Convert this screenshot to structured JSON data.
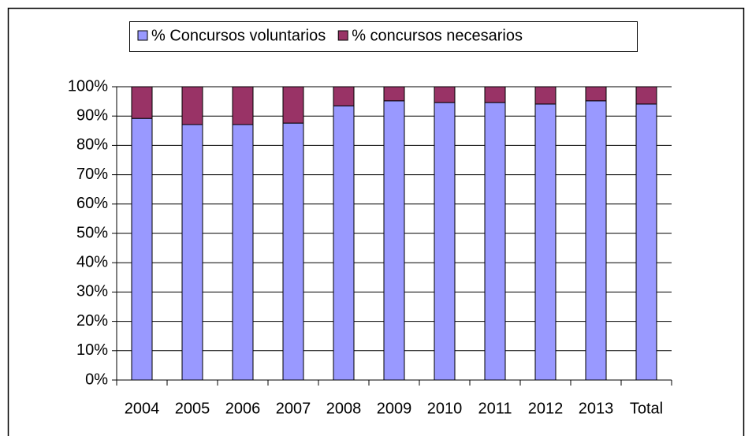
{
  "chart_data": {
    "type": "stacked_bar",
    "categories": [
      "2004",
      "2005",
      "2006",
      "2007",
      "2008",
      "2009",
      "2010",
      "2011",
      "2012",
      "2013",
      "Total"
    ],
    "series": [
      {
        "name": "% Concursos voluntarios",
        "color": "#9999ff",
        "values": [
          89.2,
          87.1,
          87.1,
          87.6,
          93.5,
          95.2,
          94.6,
          94.6,
          94.1,
          95.2,
          94.1
        ]
      },
      {
        "name": "% concursos necesarios",
        "color": "#993366",
        "values": [
          10.8,
          12.9,
          12.9,
          12.4,
          6.5,
          4.8,
          5.4,
          5.4,
          5.9,
          4.8,
          5.9
        ]
      }
    ],
    "ylim": [
      0,
      100
    ],
    "yticks": [
      {
        "value": 0,
        "label": "0%"
      },
      {
        "value": 10,
        "label": "10%"
      },
      {
        "value": 20,
        "label": "20%"
      },
      {
        "value": 30,
        "label": "30%"
      },
      {
        "value": 40,
        "label": "40%"
      },
      {
        "value": 50,
        "label": "50%"
      },
      {
        "value": 60,
        "label": "60%"
      },
      {
        "value": 70,
        "label": "70%"
      },
      {
        "value": 80,
        "label": "80%"
      },
      {
        "value": 90,
        "label": "90%"
      },
      {
        "value": 100,
        "label": "100%"
      }
    ],
    "grid": true,
    "legend": "top"
  }
}
